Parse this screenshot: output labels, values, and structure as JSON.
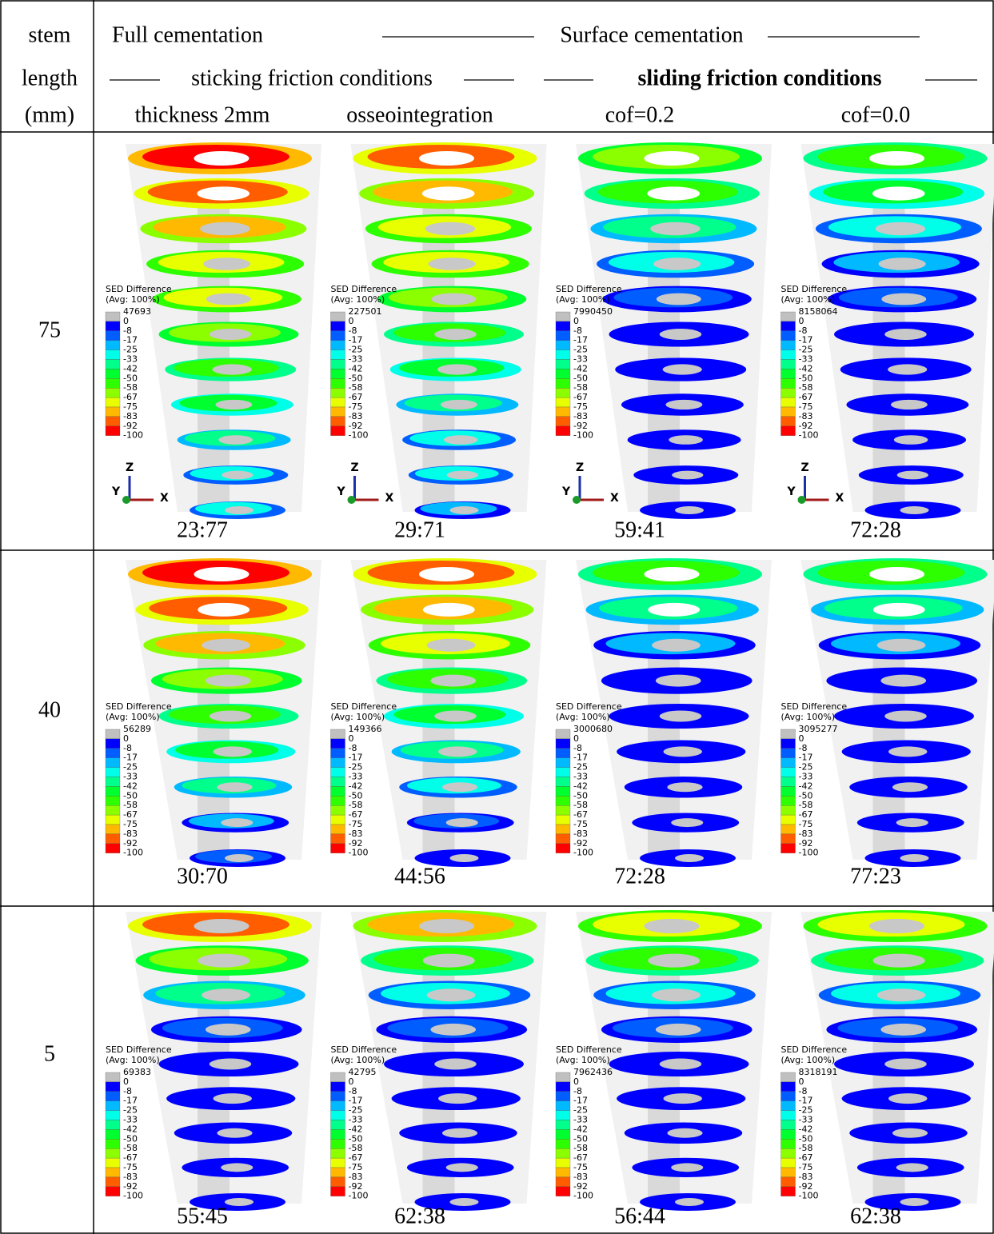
{
  "header": {
    "stem_label": [
      "stem",
      "length",
      "(mm)"
    ],
    "full_cementation": "Full cementation",
    "surface_cementation": "Surface cementation",
    "sticking": "sticking friction conditions",
    "sliding": "sliding friction conditions",
    "columns": [
      "thickness 2mm",
      "osseointegration",
      "cof=0.2",
      "cof=0.0"
    ]
  },
  "legend": {
    "title": "SED Difference",
    "subtitle": "(Avg: 100%)",
    "levels": [
      "0",
      "-8",
      "-17",
      "-25",
      "-33",
      "-42",
      "-50",
      "-58",
      "-67",
      "-75",
      "-83",
      "-92",
      "-100"
    ],
    "colors": [
      "#c0c0c0",
      "#0000ff",
      "#005dff",
      "#00b9ff",
      "#00ffe8",
      "#00ff8b",
      "#00ff2e",
      "#2eff00",
      "#8bff00",
      "#e8ff00",
      "#ffb900",
      "#ff5d00",
      "#ff0000"
    ]
  },
  "axes": [
    "Z",
    "Y",
    "X"
  ],
  "rows": [
    {
      "length": "75",
      "panels": [
        {
          "max": "47693",
          "ratio": "23:77"
        },
        {
          "max": "227501",
          "ratio": "29:71"
        },
        {
          "max": "7990450",
          "ratio": "59:41"
        },
        {
          "max": "8158064",
          "ratio": "72:28"
        }
      ]
    },
    {
      "length": "40",
      "panels": [
        {
          "max": "56289",
          "ratio": "30:70"
        },
        {
          "max": "149366",
          "ratio": "44:56"
        },
        {
          "max": "3000680",
          "ratio": "72:28"
        },
        {
          "max": "3095277",
          "ratio": "77:23"
        }
      ]
    },
    {
      "length": "5",
      "panels": [
        {
          "max": "69383",
          "ratio": "55:45"
        },
        {
          "max": "42795",
          "ratio": "62:38"
        },
        {
          "max": "7962436",
          "ratio": "56:44"
        },
        {
          "max": "8318191",
          "ratio": "62:38"
        }
      ]
    }
  ]
}
